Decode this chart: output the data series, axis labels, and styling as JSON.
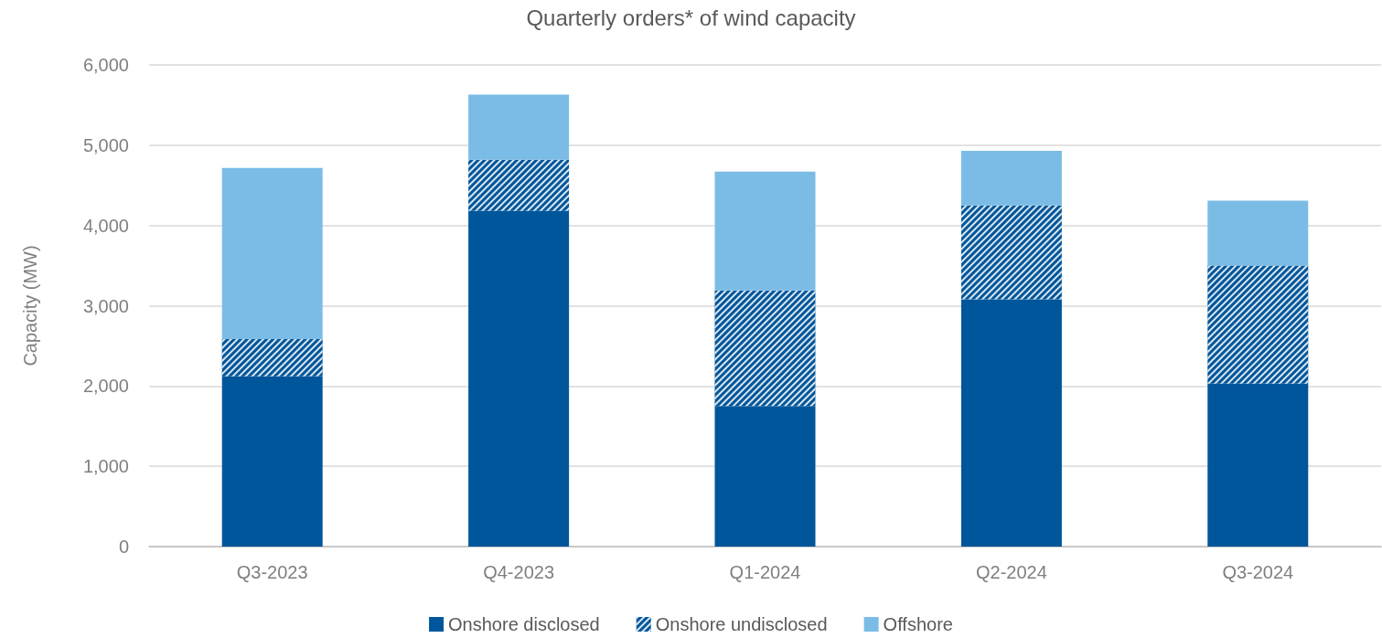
{
  "chart_data": {
    "type": "bar",
    "title": "Quarterly orders* of wind capacity",
    "ylabel": "Capacity (MW)",
    "categories": [
      "Q3-2023",
      "Q4-2023",
      "Q1-2024",
      "Q2-2024",
      "Q3-2024"
    ],
    "stacked": true,
    "series": [
      {
        "name": "Onshore disclosed",
        "color": "#00569a",
        "values": [
          2120,
          4180,
          1750,
          3080,
          2030
        ]
      },
      {
        "name": "Onshore undisclosed",
        "color": "#00569a",
        "values": [
          465,
          640,
          1440,
          1170,
          1470
        ]
      },
      {
        "name": "Offshore",
        "color": "#7bbce6",
        "values": [
          2130,
          810,
          1480,
          680,
          810
        ]
      }
    ],
    "ylim": [
      0,
      6000
    ],
    "yticks": [
      {
        "value": 0,
        "label": "0"
      },
      {
        "value": 1000,
        "label": "1,000"
      },
      {
        "value": 2000,
        "label": "2,000"
      },
      {
        "value": 3000,
        "label": "3,000"
      },
      {
        "value": 4000,
        "label": "4,000"
      },
      {
        "value": 5000,
        "label": "5,000"
      },
      {
        "value": 6000,
        "label": "6,000"
      }
    ],
    "grid": "y",
    "legend": "bottom"
  }
}
